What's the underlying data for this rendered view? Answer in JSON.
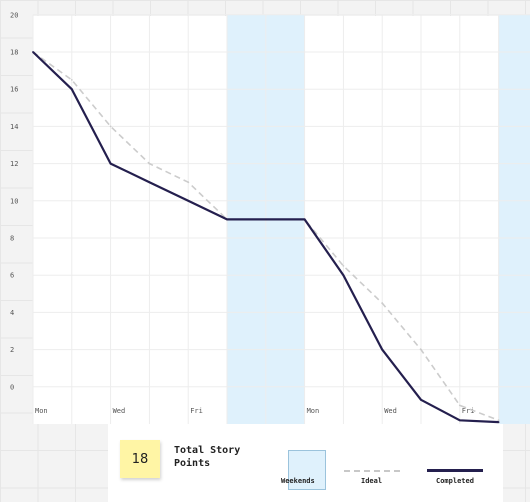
{
  "chart_data": {
    "type": "line",
    "x_labels": [
      {
        "index": 0,
        "label": "Mon"
      },
      {
        "index": 2,
        "label": "Wed"
      },
      {
        "index": 4,
        "label": "Fri"
      },
      {
        "index": 7,
        "label": "Mon"
      },
      {
        "index": 9,
        "label": "Wed"
      },
      {
        "index": 11,
        "label": "Fri"
      }
    ],
    "y_ticks": [
      0,
      2,
      4,
      6,
      8,
      10,
      12,
      14,
      16,
      18,
      20
    ],
    "ylim": [
      -2,
      20
    ],
    "weekends": [
      [
        5,
        7
      ],
      [
        12,
        13
      ]
    ],
    "series": [
      {
        "name": "Ideal",
        "style": "dashed",
        "color": "#cccccc",
        "values": [
          18,
          16.5,
          14,
          12,
          11,
          9,
          9,
          9,
          6.5,
          4.5,
          2,
          -1,
          -1.8
        ]
      },
      {
        "name": "Completed",
        "style": "solid",
        "color": "#241f4e",
        "values": [
          18,
          16,
          12,
          11,
          10,
          9,
          9,
          9,
          6,
          2,
          -0.7,
          -1.8,
          -1.9
        ]
      }
    ]
  },
  "legend": {
    "total_points": "18",
    "total_label": "Total Story Points",
    "weekends_label": "Weekends",
    "ideal_label": "Ideal",
    "completed_label": "Completed"
  },
  "colors": {
    "weekend_fill": "#dff1fc",
    "completed": "#241f4e",
    "ideal": "#cccccc"
  }
}
